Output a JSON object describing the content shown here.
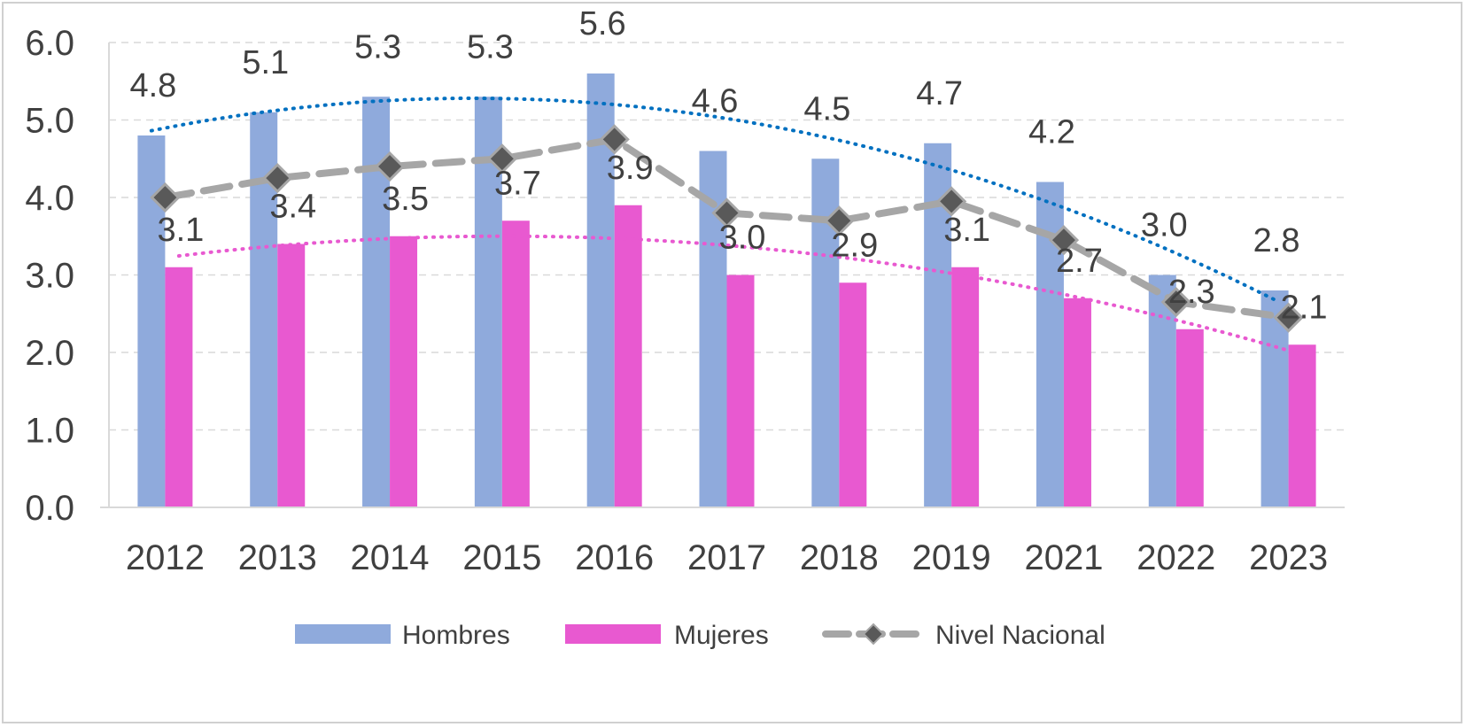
{
  "chart_data": {
    "type": "bar",
    "categories": [
      "2012",
      "2013",
      "2014",
      "2015",
      "2016",
      "2017",
      "2018",
      "2019",
      "2021",
      "2022",
      "2023"
    ],
    "series": [
      {
        "name": "Hombres",
        "type": "bar",
        "color": "#8faadc",
        "values": [
          4.8,
          5.1,
          5.3,
          5.3,
          5.6,
          4.6,
          4.5,
          4.7,
          4.2,
          3.0,
          2.8
        ]
      },
      {
        "name": "Mujeres",
        "type": "bar",
        "color": "#e859d0",
        "values": [
          3.1,
          3.4,
          3.5,
          3.7,
          3.9,
          3.0,
          2.9,
          3.1,
          2.7,
          2.3,
          2.1
        ]
      },
      {
        "name": "Nivel Nacional",
        "type": "line",
        "style": "dashed",
        "marker": "diamond",
        "color": "#a6a6a6",
        "values": [
          4.0,
          4.25,
          4.4,
          4.5,
          4.75,
          3.8,
          3.7,
          3.95,
          3.45,
          2.65,
          2.45
        ]
      }
    ],
    "trendlines": [
      {
        "series": "Hombres",
        "style": "dotted",
        "color": "#0070c0",
        "kind": "polynomial"
      },
      {
        "series": "Mujeres",
        "style": "dotted",
        "color": "#e859d0",
        "kind": "polynomial"
      }
    ],
    "y_ticks": [
      "0.0",
      "1.0",
      "2.0",
      "3.0",
      "4.0",
      "5.0",
      "6.0"
    ],
    "ylim": [
      0,
      6
    ],
    "grid": true,
    "legend_position": "bottom",
    "title": "",
    "xlabel": "",
    "ylabel": ""
  }
}
